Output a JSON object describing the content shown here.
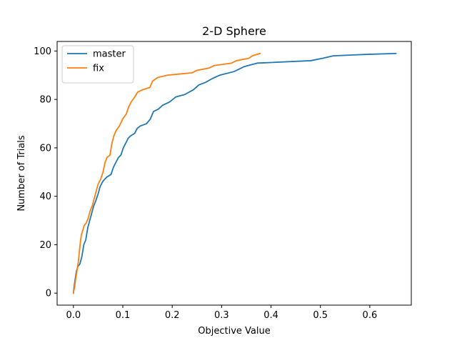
{
  "chart_data": {
    "type": "line",
    "title": "2-D Sphere",
    "xlabel": "Objective Value",
    "ylabel": "Number of Trials",
    "xlim": [
      -0.033,
      0.684
    ],
    "ylim": [
      -4.95,
      103.95
    ],
    "xticks": [
      0.0,
      0.1,
      0.2,
      0.3,
      0.4,
      0.5,
      0.6
    ],
    "xtick_labels": [
      "0.0",
      "0.1",
      "0.2",
      "0.3",
      "0.4",
      "0.5",
      "0.6"
    ],
    "yticks": [
      0,
      20,
      40,
      60,
      80,
      100
    ],
    "ytick_labels": [
      "0",
      "20",
      "40",
      "60",
      "80",
      "100"
    ],
    "grid": false,
    "legend": {
      "position": "upper-left"
    },
    "series": [
      {
        "name": "master",
        "color": "#1f77b4",
        "points": [
          [
            0.0,
            0
          ],
          [
            0.001,
            2
          ],
          [
            0.003,
            5
          ],
          [
            0.006,
            9
          ],
          [
            0.009,
            11
          ],
          [
            0.013,
            12
          ],
          [
            0.017,
            15
          ],
          [
            0.021,
            20
          ],
          [
            0.025,
            22
          ],
          [
            0.029,
            27
          ],
          [
            0.033,
            30
          ],
          [
            0.037,
            33
          ],
          [
            0.041,
            36
          ],
          [
            0.045,
            38
          ],
          [
            0.05,
            41
          ],
          [
            0.054,
            44
          ],
          [
            0.059,
            46
          ],
          [
            0.063,
            47
          ],
          [
            0.068,
            48
          ],
          [
            0.076,
            49
          ],
          [
            0.081,
            52
          ],
          [
            0.086,
            54
          ],
          [
            0.091,
            56
          ],
          [
            0.096,
            57
          ],
          [
            0.101,
            60
          ],
          [
            0.106,
            62
          ],
          [
            0.111,
            64
          ],
          [
            0.116,
            65
          ],
          [
            0.124,
            66
          ],
          [
            0.129,
            68
          ],
          [
            0.135,
            69
          ],
          [
            0.148,
            70
          ],
          [
            0.156,
            72
          ],
          [
            0.162,
            75
          ],
          [
            0.172,
            76
          ],
          [
            0.18,
            77.5
          ],
          [
            0.195,
            79
          ],
          [
            0.207,
            81
          ],
          [
            0.225,
            82
          ],
          [
            0.243,
            84
          ],
          [
            0.254,
            86
          ],
          [
            0.267,
            87
          ],
          [
            0.28,
            88.5
          ],
          [
            0.296,
            90
          ],
          [
            0.325,
            91.5
          ],
          [
            0.345,
            93.5
          ],
          [
            0.372,
            95
          ],
          [
            0.48,
            96
          ],
          [
            0.505,
            97
          ],
          [
            0.526,
            98
          ],
          [
            0.58,
            98.5
          ],
          [
            0.653,
            99
          ]
        ]
      },
      {
        "name": "fix",
        "color": "#ff7f0e",
        "points": [
          [
            0.0,
            0
          ],
          [
            0.002,
            2
          ],
          [
            0.004,
            5
          ],
          [
            0.007,
            9
          ],
          [
            0.01,
            13
          ],
          [
            0.012,
            17
          ],
          [
            0.014,
            21
          ],
          [
            0.016,
            24
          ],
          [
            0.019,
            26
          ],
          [
            0.022,
            28
          ],
          [
            0.026,
            29
          ],
          [
            0.03,
            31
          ],
          [
            0.034,
            34
          ],
          [
            0.038,
            36
          ],
          [
            0.042,
            39
          ],
          [
            0.046,
            42
          ],
          [
            0.05,
            45
          ],
          [
            0.055,
            47
          ],
          [
            0.06,
            50
          ],
          [
            0.064,
            54
          ],
          [
            0.068,
            56
          ],
          [
            0.074,
            57
          ],
          [
            0.078,
            62
          ],
          [
            0.082,
            65
          ],
          [
            0.086,
            67
          ],
          [
            0.093,
            69
          ],
          [
            0.1,
            72
          ],
          [
            0.107,
            74
          ],
          [
            0.112,
            77
          ],
          [
            0.117,
            79
          ],
          [
            0.124,
            81
          ],
          [
            0.13,
            83
          ],
          [
            0.14,
            84
          ],
          [
            0.155,
            85
          ],
          [
            0.16,
            87.5
          ],
          [
            0.17,
            89
          ],
          [
            0.19,
            90
          ],
          [
            0.215,
            90.5
          ],
          [
            0.24,
            91
          ],
          [
            0.25,
            92
          ],
          [
            0.275,
            93
          ],
          [
            0.285,
            94
          ],
          [
            0.32,
            95
          ],
          [
            0.33,
            96
          ],
          [
            0.355,
            97
          ],
          [
            0.362,
            98
          ],
          [
            0.378,
            99
          ]
        ]
      }
    ]
  }
}
